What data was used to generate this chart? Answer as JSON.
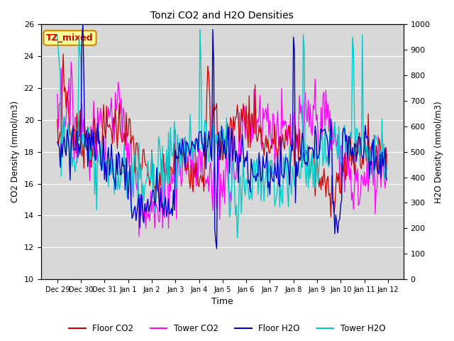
{
  "title": "Tonzi CO2 and H2O Densities",
  "xlabel": "Time",
  "ylabel_left": "CO2 Density (mmol/m3)",
  "ylabel_right": "H2O Density (mmol/m3)",
  "ylim_left": [
    10,
    26
  ],
  "ylim_right": [
    0,
    1000
  ],
  "yticks_left": [
    10,
    12,
    14,
    16,
    18,
    20,
    22,
    24,
    26
  ],
  "yticks_right": [
    0,
    100,
    200,
    300,
    400,
    500,
    600,
    700,
    800,
    900,
    1000
  ],
  "plot_bg_color": "#d8d8d8",
  "annotation_text": "TZ_mixed",
  "annotation_color": "#cc0000",
  "annotation_bg": "#ffff99",
  "annotation_border": "#cc8800",
  "floor_co2_color": "#cc0000",
  "tower_co2_color": "#ff00ff",
  "floor_h2o_color": "#0000cc",
  "tower_h2o_color": "#00cccc",
  "legend_labels": [
    "Floor CO2",
    "Tower CO2",
    "Floor H2O",
    "Tower H2O"
  ],
  "n_points": 336,
  "seed": 7
}
